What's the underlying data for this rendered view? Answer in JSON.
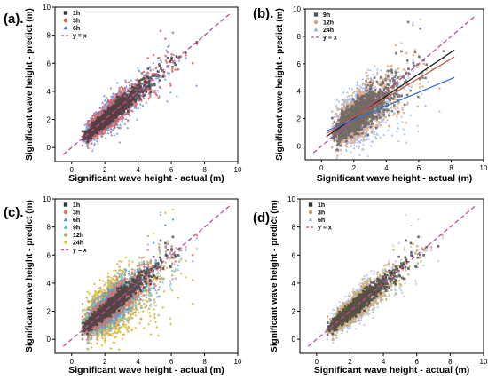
{
  "chart_data": [
    {
      "panel_label": "(a).",
      "type": "scatter",
      "xlabel": "Significant wave height - actual (m)",
      "ylabel": "Significant wave height - predict (m)",
      "xlim": [
        -1,
        10
      ],
      "ylim": [
        -1,
        10
      ],
      "x_ticks": [
        0,
        2,
        4,
        6,
        8,
        10
      ],
      "y_ticks": [
        0,
        2,
        4,
        6,
        8,
        10
      ],
      "legend_position": "top-left",
      "series": [
        {
          "name": "1h",
          "color": "#333333",
          "marker": "square",
          "spread": 0.25,
          "gain": 1.0,
          "offset": 0.0
        },
        {
          "name": "3h",
          "color": "#d9534f",
          "marker": "circle",
          "spread": 0.45,
          "gain": 0.98,
          "offset": 0.05
        },
        {
          "name": "6h",
          "color": "#4a7fd4",
          "marker": "triangle",
          "spread": 0.55,
          "gain": 0.95,
          "offset": 0.1
        }
      ],
      "reference": {
        "name": "y = x",
        "color": "#c04a9a"
      },
      "fit_lines": []
    },
    {
      "panel_label": "(b).",
      "type": "scatter",
      "xlabel": "Significant wave height - actual (m)",
      "ylabel": "Significant wave height - predict (m)",
      "xlim": [
        -1,
        10
      ],
      "ylim": [
        -1,
        10
      ],
      "x_ticks": [
        0,
        2,
        4,
        6,
        8,
        10
      ],
      "y_ticks": [
        0,
        2,
        4,
        6,
        8,
        10
      ],
      "legend_position": "top-left",
      "series": [
        {
          "name": "9h",
          "color": "#555555",
          "marker": "square",
          "spread": 0.6,
          "gain": 0.9,
          "offset": 0.2
        },
        {
          "name": "12h",
          "color": "#e0a070",
          "marker": "circle",
          "spread": 0.8,
          "gain": 0.82,
          "offset": 0.35
        },
        {
          "name": "24h",
          "color": "#8fb0e8",
          "marker": "triangle",
          "spread": 1.0,
          "gain": 0.6,
          "offset": 0.8
        }
      ],
      "reference": {
        "name": "y = x",
        "color": "#c04a9a"
      },
      "fit_lines": [
        {
          "color": "#222222",
          "x": [
            0.3,
            8.2
          ],
          "y": [
            0.7,
            7.0
          ]
        },
        {
          "color": "#c06050",
          "x": [
            0.3,
            8.2
          ],
          "y": [
            0.9,
            6.5
          ]
        },
        {
          "color": "#3a6fd0",
          "x": [
            0.3,
            8.2
          ],
          "y": [
            1.1,
            5.0
          ]
        }
      ]
    },
    {
      "panel_label": "(c).",
      "type": "scatter",
      "xlabel": "Significant wave height - actual (m)",
      "ylabel": "Significant wave height - predict (m)",
      "xlim": [
        -1,
        10
      ],
      "ylim": [
        -1,
        10
      ],
      "x_ticks": [
        0,
        2,
        4,
        6,
        8,
        10
      ],
      "y_ticks": [
        0,
        2,
        4,
        6,
        8,
        10
      ],
      "legend_position": "top-left",
      "series": [
        {
          "name": "1h",
          "color": "#333333",
          "marker": "square",
          "spread": 0.25,
          "gain": 1.0,
          "offset": 0.0
        },
        {
          "name": "3h",
          "color": "#e07060",
          "marker": "circle",
          "spread": 0.45,
          "gain": 0.98,
          "offset": 0.05
        },
        {
          "name": "6h",
          "color": "#5b8de0",
          "marker": "triangle",
          "spread": 0.55,
          "gain": 0.95,
          "offset": 0.1
        },
        {
          "name": "9h",
          "color": "#4cc0c0",
          "marker": "triangle",
          "spread": 0.6,
          "gain": 0.9,
          "offset": 0.2
        },
        {
          "name": "12h",
          "color": "#b9a878",
          "marker": "circle",
          "spread": 0.8,
          "gain": 0.82,
          "offset": 0.35
        },
        {
          "name": "24h",
          "color": "#d6a800",
          "marker": "cross",
          "spread": 1.0,
          "gain": 0.6,
          "offset": 0.8
        }
      ],
      "reference": {
        "name": "y = x",
        "color": "#c04a9a"
      },
      "fit_lines": []
    },
    {
      "panel_label": "(d).",
      "type": "scatter",
      "xlabel": "Significant wave height - actual (m)",
      "ylabel": "Significant wave height - predict (m)",
      "xlim": [
        -1,
        10
      ],
      "ylim": [
        -1,
        10
      ],
      "x_ticks": [
        0,
        2,
        4,
        6,
        8,
        10
      ],
      "y_ticks": [
        0,
        2,
        4,
        6,
        8,
        10
      ],
      "legend_position": "top-left",
      "series": [
        {
          "name": "1h",
          "color": "#333333",
          "marker": "square",
          "spread": 0.25,
          "gain": 1.0,
          "offset": 0.0
        },
        {
          "name": "3h",
          "color": "#c8a050",
          "marker": "circle",
          "spread": 0.45,
          "gain": 0.98,
          "offset": 0.05
        },
        {
          "name": "6h",
          "color": "#a0b8e8",
          "marker": "triangle",
          "spread": 0.55,
          "gain": 0.95,
          "offset": 0.1
        }
      ],
      "reference": {
        "name": "y = x",
        "color": "#c04a9a"
      },
      "fit_lines": []
    }
  ]
}
